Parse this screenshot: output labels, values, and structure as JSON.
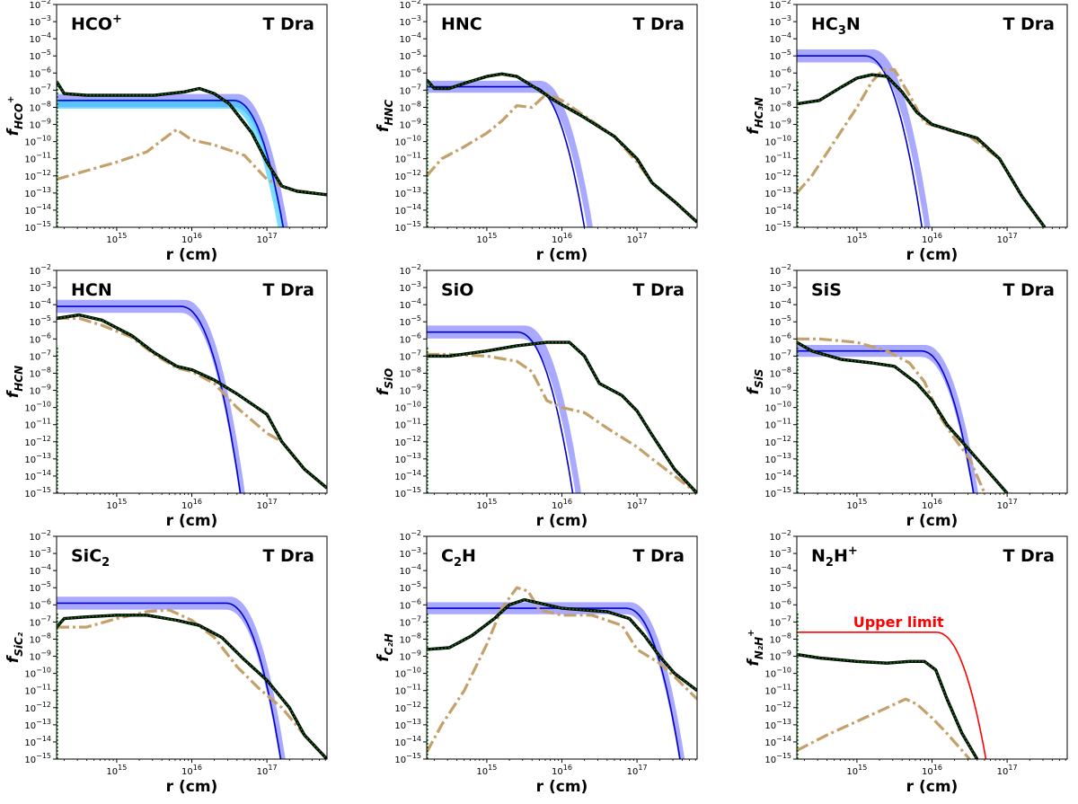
{
  "colors": {
    "band": "#7b7bff",
    "band2": "#33ccff",
    "model_line": "#0000cc",
    "green_line": "#0a7a0a",
    "green_core": "#000000",
    "tan_line": "#c4a06a",
    "red_line": "#ff0000"
  },
  "chart_data": [
    {
      "type": "line",
      "title": "HCO",
      "title_sup": "+",
      "title_sub": "",
      "object": "T Dra",
      "ylabel_main": "f",
      "ylabel_sub": "HCO",
      "ylabel_sup": "+",
      "xlabel": "r (cm)",
      "xscale": "log",
      "yscale": "log",
      "xlim_log10": [
        14.2,
        17.8
      ],
      "ylim_log10": [
        -15,
        -2
      ],
      "x_ticks": [
        "10^15",
        "10^16",
        "10^17"
      ],
      "band": {
        "center": -7.6,
        "width": 0.38,
        "rolloff": 17.05
      },
      "band2": {
        "center": -7.8,
        "width": 0.28,
        "rolloff": 17.0
      },
      "model_fit": {
        "level": -7.6,
        "rolloff": 17.0
      },
      "green": [
        [
          14.2,
          -6.5
        ],
        [
          14.3,
          -7.2
        ],
        [
          14.6,
          -7.3
        ],
        [
          15.0,
          -7.3
        ],
        [
          15.5,
          -7.3
        ],
        [
          15.9,
          -7.1
        ],
        [
          16.1,
          -6.9
        ],
        [
          16.3,
          -7.2
        ],
        [
          16.5,
          -7.8
        ],
        [
          16.8,
          -9.5
        ],
        [
          17.0,
          -11.2
        ],
        [
          17.2,
          -12.6
        ],
        [
          17.4,
          -12.9
        ],
        [
          17.8,
          -13.1
        ]
      ],
      "tan": [
        [
          14.2,
          -12.2
        ],
        [
          14.6,
          -11.7
        ],
        [
          15.0,
          -11.2
        ],
        [
          15.4,
          -10.6
        ],
        [
          15.7,
          -9.6
        ],
        [
          15.8,
          -9.3
        ],
        [
          16.0,
          -9.9
        ],
        [
          16.3,
          -10.2
        ],
        [
          16.7,
          -10.8
        ],
        [
          17.0,
          -12.2
        ],
        [
          17.3,
          -12.8
        ],
        [
          17.8,
          -13.1
        ]
      ],
      "upper_limit": null
    },
    {
      "type": "line",
      "title": "HNC",
      "title_sup": "",
      "title_sub": "",
      "object": "T Dra",
      "ylabel_main": "f",
      "ylabel_sub": "HNC",
      "ylabel_sup": "",
      "xlabel": "r (cm)",
      "xscale": "log",
      "yscale": "log",
      "xlim_log10": [
        14.2,
        17.8
      ],
      "ylim_log10": [
        -15,
        -2
      ],
      "x_ticks": [
        "10^15",
        "10^16",
        "10^17"
      ],
      "band": {
        "center": -6.8,
        "width": 0.35,
        "rolloff": 16.15
      },
      "band2": null,
      "model_fit": {
        "level": -6.8,
        "rolloff": 16.05
      },
      "green": [
        [
          14.2,
          -6.4
        ],
        [
          14.3,
          -6.9
        ],
        [
          14.5,
          -6.9
        ],
        [
          14.7,
          -6.6
        ],
        [
          15.0,
          -6.2
        ],
        [
          15.2,
          -6.05
        ],
        [
          15.4,
          -6.2
        ],
        [
          15.7,
          -7.0
        ],
        [
          15.9,
          -7.6
        ],
        [
          16.3,
          -8.6
        ],
        [
          16.7,
          -9.7
        ],
        [
          17.0,
          -11.0
        ],
        [
          17.2,
          -12.4
        ],
        [
          17.5,
          -13.5
        ],
        [
          17.8,
          -14.7
        ]
      ],
      "tan": [
        [
          14.2,
          -12.0
        ],
        [
          14.4,
          -11.0
        ],
        [
          14.7,
          -10.3
        ],
        [
          15.0,
          -9.5
        ],
        [
          15.2,
          -8.8
        ],
        [
          15.4,
          -7.9
        ],
        [
          15.6,
          -8.0
        ],
        [
          15.8,
          -7.2
        ],
        [
          16.0,
          -7.6
        ],
        [
          16.3,
          -8.5
        ],
        [
          16.7,
          -9.7
        ],
        [
          17.0,
          -11.2
        ],
        [
          17.2,
          -12.4
        ],
        [
          17.5,
          -13.5
        ],
        [
          17.8,
          -14.7
        ]
      ],
      "upper_limit": null
    },
    {
      "type": "line",
      "title": "HC",
      "title_sup": "",
      "title_sub": "3",
      "title_after": "N",
      "object": "T Dra",
      "ylabel_main": "f",
      "ylabel_sub": "HC₃N",
      "ylabel_sup": "",
      "xlabel": "r (cm)",
      "xscale": "log",
      "yscale": "log",
      "xlim_log10": [
        14.2,
        17.8
      ],
      "ylim_log10": [
        -15,
        -2
      ],
      "x_ticks": [
        "10^15",
        "10^16",
        "10^17"
      ],
      "band": {
        "center": -5.0,
        "width": 0.38,
        "rolloff": 15.65
      },
      "band2": null,
      "model_fit": {
        "level": -5.0,
        "rolloff": 15.55
      },
      "green": [
        [
          14.2,
          -7.8
        ],
        [
          14.5,
          -7.6
        ],
        [
          14.8,
          -6.8
        ],
        [
          15.0,
          -6.3
        ],
        [
          15.2,
          -6.1
        ],
        [
          15.4,
          -6.2
        ],
        [
          15.6,
          -7.1
        ],
        [
          15.8,
          -8.3
        ],
        [
          16.0,
          -9.0
        ],
        [
          16.3,
          -9.4
        ],
        [
          16.6,
          -9.8
        ],
        [
          16.9,
          -11.0
        ],
        [
          17.2,
          -13.2
        ],
        [
          17.5,
          -15.0
        ]
      ],
      "tan": [
        [
          14.2,
          -13.0
        ],
        [
          14.4,
          -12.0
        ],
        [
          14.7,
          -10.0
        ],
        [
          15.0,
          -8.0
        ],
        [
          15.2,
          -6.5
        ],
        [
          15.35,
          -5.8
        ],
        [
          15.5,
          -5.8
        ],
        [
          15.7,
          -7.3
        ],
        [
          15.9,
          -8.9
        ],
        [
          16.2,
          -9.3
        ],
        [
          16.5,
          -9.7
        ],
        [
          16.9,
          -11.0
        ],
        [
          17.2,
          -13.2
        ],
        [
          17.5,
          -15.0
        ]
      ],
      "upper_limit": null
    },
    {
      "type": "line",
      "title": "HCN",
      "title_sup": "",
      "title_sub": "",
      "object": "T Dra",
      "ylabel_main": "f",
      "ylabel_sub": "HCN",
      "ylabel_sup": "",
      "xlabel": "r (cm)",
      "xscale": "log",
      "yscale": "log",
      "xlim_log10": [
        14.2,
        17.8
      ],
      "ylim_log10": [
        -15,
        -2
      ],
      "x_ticks": [
        "10^15",
        "10^16",
        "10^17"
      ],
      "band": {
        "center": -4.1,
        "width": 0.38,
        "rolloff": 16.35
      },
      "band2": null,
      "model_fit": {
        "level": -4.1,
        "rolloff": 16.3
      },
      "green": [
        [
          14.2,
          -4.8
        ],
        [
          14.5,
          -4.6
        ],
        [
          14.8,
          -4.9
        ],
        [
          15.2,
          -5.8
        ],
        [
          15.5,
          -6.8
        ],
        [
          15.8,
          -7.6
        ],
        [
          16.0,
          -7.8
        ],
        [
          16.3,
          -8.4
        ],
        [
          16.6,
          -9.2
        ],
        [
          17.0,
          -10.4
        ],
        [
          17.2,
          -12.0
        ],
        [
          17.5,
          -13.6
        ],
        [
          17.8,
          -14.7
        ]
      ],
      "tan": [
        [
          14.2,
          -4.8
        ],
        [
          14.5,
          -4.8
        ],
        [
          14.8,
          -5.2
        ],
        [
          15.2,
          -5.9
        ],
        [
          15.5,
          -6.9
        ],
        [
          15.8,
          -7.7
        ],
        [
          16.0,
          -7.9
        ],
        [
          16.3,
          -8.6
        ],
        [
          16.6,
          -10.0
        ],
        [
          17.0,
          -11.5
        ],
        [
          17.2,
          -12.0
        ],
        [
          17.5,
          -13.6
        ],
        [
          17.8,
          -14.7
        ]
      ],
      "upper_limit": null
    },
    {
      "type": "line",
      "title": "SiO",
      "title_sup": "",
      "title_sub": "",
      "object": "T Dra",
      "ylabel_main": "f",
      "ylabel_sub": "SiO",
      "ylabel_sup": "",
      "xlabel": "r (cm)",
      "xscale": "log",
      "yscale": "log",
      "xlim_log10": [
        14.2,
        17.8
      ],
      "ylim_log10": [
        -15,
        -2
      ],
      "x_ticks": [
        "10^15",
        "10^16",
        "10^17"
      ],
      "band": {
        "center": -5.6,
        "width": 0.38,
        "rolloff": 15.95
      },
      "band2": null,
      "model_fit": {
        "level": -5.6,
        "rolloff": 15.85
      },
      "green": [
        [
          14.2,
          -7.0
        ],
        [
          14.5,
          -7.0
        ],
        [
          15.0,
          -6.7
        ],
        [
          15.4,
          -6.4
        ],
        [
          15.8,
          -6.2
        ],
        [
          16.1,
          -6.2
        ],
        [
          16.3,
          -7.0
        ],
        [
          16.5,
          -8.6
        ],
        [
          16.8,
          -9.3
        ],
        [
          17.0,
          -10.2
        ],
        [
          17.2,
          -11.6
        ],
        [
          17.5,
          -13.6
        ],
        [
          17.8,
          -15.0
        ]
      ],
      "tan": [
        [
          14.2,
          -6.9
        ],
        [
          14.5,
          -6.9
        ],
        [
          15.0,
          -7.0
        ],
        [
          15.4,
          -7.3
        ],
        [
          15.6,
          -7.9
        ],
        [
          15.8,
          -9.6
        ],
        [
          16.0,
          -10.0
        ],
        [
          16.3,
          -10.3
        ],
        [
          16.6,
          -11.2
        ],
        [
          17.0,
          -12.3
        ],
        [
          17.2,
          -13.0
        ],
        [
          17.5,
          -14.0
        ],
        [
          17.8,
          -15.0
        ]
      ],
      "upper_limit": null
    },
    {
      "type": "line",
      "title": "SiS",
      "title_sup": "",
      "title_sub": "",
      "object": "T Dra",
      "ylabel_main": "f",
      "ylabel_sub": "SiS",
      "ylabel_sup": "",
      "xlabel": "r (cm)",
      "xscale": "log",
      "yscale": "log",
      "xlim_log10": [
        14.2,
        17.8
      ],
      "ylim_log10": [
        -15,
        -2
      ],
      "x_ticks": [
        "10^15",
        "10^16",
        "10^17"
      ],
      "band": {
        "center": -6.7,
        "width": 0.35,
        "rolloff": 16.35
      },
      "band2": null,
      "model_fit": {
        "level": -6.7,
        "rolloff": 16.3
      },
      "green": [
        [
          14.2,
          -6.2
        ],
        [
          14.4,
          -6.7
        ],
        [
          14.8,
          -7.2
        ],
        [
          15.2,
          -7.4
        ],
        [
          15.5,
          -7.6
        ],
        [
          15.8,
          -8.6
        ],
        [
          16.0,
          -9.6
        ],
        [
          16.2,
          -11.0
        ],
        [
          16.5,
          -12.5
        ],
        [
          16.8,
          -14.0
        ],
        [
          17.0,
          -15.0
        ]
      ],
      "tan": [
        [
          14.2,
          -6.0
        ],
        [
          14.5,
          -6.0
        ],
        [
          15.0,
          -6.2
        ],
        [
          15.4,
          -6.7
        ],
        [
          15.7,
          -7.4
        ],
        [
          15.9,
          -8.5
        ],
        [
          16.1,
          -10.5
        ],
        [
          16.3,
          -11.8
        ],
        [
          16.5,
          -13.0
        ],
        [
          16.7,
          -15.0
        ]
      ],
      "upper_limit": null
    },
    {
      "type": "line",
      "title": "SiC",
      "title_sup": "",
      "title_sub": "2",
      "title_after": "",
      "object": "T Dra",
      "ylabel_main": "f",
      "ylabel_sub": "SiC₂",
      "ylabel_sup": "",
      "xlabel": "r (cm)",
      "xscale": "log",
      "yscale": "log",
      "xlim_log10": [
        14.2,
        17.8
      ],
      "ylim_log10": [
        -15,
        -2
      ],
      "x_ticks": [
        "10^15",
        "10^16",
        "10^17"
      ],
      "band": {
        "center": -5.9,
        "width": 0.38,
        "rolloff": 16.95
      },
      "band2": null,
      "model_fit": {
        "level": -5.9,
        "rolloff": 16.9
      },
      "green": [
        [
          14.2,
          -7.3
        ],
        [
          14.3,
          -6.8
        ],
        [
          14.6,
          -6.7
        ],
        [
          15.0,
          -6.6
        ],
        [
          15.4,
          -6.6
        ],
        [
          15.8,
          -6.9
        ],
        [
          16.1,
          -7.2
        ],
        [
          16.4,
          -7.9
        ],
        [
          16.7,
          -9.2
        ],
        [
          17.0,
          -10.4
        ],
        [
          17.3,
          -12.0
        ],
        [
          17.5,
          -13.6
        ],
        [
          17.8,
          -15.0
        ]
      ],
      "tan": [
        [
          14.2,
          -7.3
        ],
        [
          14.6,
          -7.3
        ],
        [
          15.0,
          -6.8
        ],
        [
          15.4,
          -6.4
        ],
        [
          15.7,
          -6.3
        ],
        [
          16.0,
          -6.9
        ],
        [
          16.3,
          -7.9
        ],
        [
          16.6,
          -9.6
        ],
        [
          16.9,
          -10.9
        ],
        [
          17.2,
          -12.0
        ],
        [
          17.5,
          -13.6
        ],
        [
          17.8,
          -15.0
        ]
      ],
      "upper_limit": null
    },
    {
      "type": "line",
      "title": "C",
      "title_sup": "",
      "title_sub": "2",
      "title_after": "H",
      "object": "T Dra",
      "ylabel_main": "f",
      "ylabel_sub": "C₂H",
      "ylabel_sup": "",
      "xlabel": "r (cm)",
      "xscale": "log",
      "yscale": "log",
      "xlim_log10": [
        14.2,
        17.8
      ],
      "ylim_log10": [
        -15,
        -2
      ],
      "x_ticks": [
        "10^15",
        "10^16",
        "10^17"
      ],
      "band": {
        "center": -6.2,
        "width": 0.35,
        "rolloff": 17.35
      },
      "band2": null,
      "model_fit": {
        "level": -6.2,
        "rolloff": 17.3
      },
      "green": [
        [
          14.2,
          -8.6
        ],
        [
          14.5,
          -8.5
        ],
        [
          14.8,
          -7.8
        ],
        [
          15.1,
          -6.8
        ],
        [
          15.3,
          -6.0
        ],
        [
          15.5,
          -5.7
        ],
        [
          15.7,
          -5.9
        ],
        [
          16.0,
          -6.2
        ],
        [
          16.3,
          -6.3
        ],
        [
          16.6,
          -6.4
        ],
        [
          16.9,
          -6.8
        ],
        [
          17.1,
          -7.8
        ],
        [
          17.3,
          -9.0
        ],
        [
          17.5,
          -10.0
        ],
        [
          17.8,
          -11.0
        ]
      ],
      "tan": [
        [
          14.2,
          -14.6
        ],
        [
          14.4,
          -13.0
        ],
        [
          14.7,
          -11.0
        ],
        [
          15.0,
          -8.3
        ],
        [
          15.2,
          -6.2
        ],
        [
          15.4,
          -5.0
        ],
        [
          15.55,
          -5.2
        ],
        [
          15.7,
          -6.3
        ],
        [
          16.0,
          -6.6
        ],
        [
          16.4,
          -6.6
        ],
        [
          16.8,
          -7.2
        ],
        [
          17.0,
          -8.6
        ],
        [
          17.3,
          -9.4
        ],
        [
          17.5,
          -10.2
        ],
        [
          17.8,
          -11.5
        ]
      ],
      "upper_limit": null
    },
    {
      "type": "line",
      "title": "N",
      "title_sup": "+",
      "title_sub": "2",
      "title_after": "H",
      "object": "T Dra",
      "ylabel_main": "f",
      "ylabel_sub": "N₂H",
      "ylabel_sup": "+",
      "xlabel": "r (cm)",
      "xscale": "log",
      "yscale": "log",
      "xlim_log10": [
        14.2,
        17.8
      ],
      "ylim_log10": [
        -15,
        -2
      ],
      "x_ticks": [
        "10^15",
        "10^16",
        "10^17"
      ],
      "band": null,
      "band2": null,
      "model_fit": null,
      "green": [
        [
          14.2,
          -8.9
        ],
        [
          14.5,
          -9.1
        ],
        [
          15.0,
          -9.3
        ],
        [
          15.4,
          -9.4
        ],
        [
          15.7,
          -9.3
        ],
        [
          15.9,
          -9.3
        ],
        [
          16.05,
          -9.8
        ],
        [
          16.2,
          -11.5
        ],
        [
          16.4,
          -13.5
        ],
        [
          16.6,
          -15.0
        ]
      ],
      "tan": [
        [
          14.2,
          -14.5
        ],
        [
          14.6,
          -13.6
        ],
        [
          15.0,
          -12.8
        ],
        [
          15.4,
          -12.0
        ],
        [
          15.65,
          -11.5
        ],
        [
          15.8,
          -11.8
        ],
        [
          16.0,
          -12.6
        ],
        [
          16.2,
          -13.5
        ],
        [
          16.5,
          -15.0
        ]
      ],
      "upper_limit": {
        "label": "Upper limit",
        "level": -7.6,
        "rolloff": 16.5
      }
    }
  ]
}
